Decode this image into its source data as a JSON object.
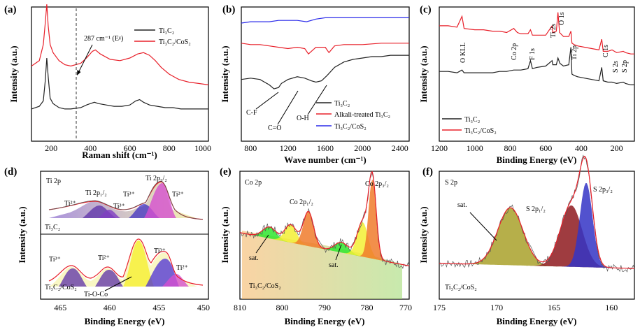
{
  "chart_data": [
    {
      "panel": "(a)",
      "type": "line",
      "xlabel": "Raman shift (cm⁻¹)",
      "ylabel": "Intensity (a.u.)",
      "xlim": [
        100,
        1000
      ],
      "xticks": [
        "200",
        "400",
        "600",
        "800",
        "1000"
      ],
      "annotation": "287 cm⁻¹ (Eᵍ)",
      "marker_x": 287,
      "series": [
        {
          "name": "Ti₃C₂",
          "color": "#222222",
          "x": [
            100,
            140,
            160,
            170,
            178,
            185,
            195,
            210,
            240,
            270,
            300,
            350,
            380,
            400,
            420,
            440,
            480,
            520,
            560,
            600,
            630,
            650,
            670,
            700,
            740,
            780,
            820,
            860,
            900,
            950,
            1000
          ],
          "y": [
            0.24,
            0.26,
            0.3,
            0.45,
            0.62,
            0.48,
            0.32,
            0.28,
            0.25,
            0.24,
            0.24,
            0.25,
            0.27,
            0.28,
            0.29,
            0.28,
            0.27,
            0.26,
            0.26,
            0.27,
            0.3,
            0.31,
            0.29,
            0.27,
            0.26,
            0.25,
            0.25,
            0.24,
            0.24,
            0.24,
            0.24
          ]
        },
        {
          "name": "Ti₃C₂/CoS₂",
          "color": "#e8202a",
          "x": [
            100,
            140,
            160,
            170,
            178,
            185,
            195,
            210,
            240,
            270,
            300,
            350,
            380,
            410,
            425,
            450,
            500,
            550,
            600,
            640,
            670,
            700,
            730,
            760,
            800,
            850,
            900,
            950,
            1000
          ],
          "y": [
            0.56,
            0.6,
            0.72,
            0.88,
            1.02,
            0.86,
            0.72,
            0.66,
            0.6,
            0.57,
            0.56,
            0.58,
            0.62,
            0.67,
            0.68,
            0.65,
            0.61,
            0.6,
            0.62,
            0.65,
            0.66,
            0.64,
            0.6,
            0.55,
            0.5,
            0.46,
            0.44,
            0.43,
            0.42
          ]
        }
      ]
    },
    {
      "panel": "(b)",
      "type": "line",
      "xlabel": "Wave number (cm⁻¹)",
      "ylabel": "Intensity (a.u.)",
      "xlim": [
        700,
        2500
      ],
      "xticks": [
        "800",
        "1200",
        "1600",
        "2000",
        "2400"
      ],
      "annotations": [
        "C-F",
        "C=O",
        "O-H"
      ],
      "series": [
        {
          "name": "Ti₃C₂",
          "color": "#222222",
          "x": [
            700,
            800,
            900,
            1000,
            1050,
            1100,
            1130,
            1200,
            1300,
            1380,
            1450,
            1500,
            1560,
            1620,
            1700,
            1800,
            1900,
            2000,
            2100,
            2200,
            2300,
            2400,
            2500
          ],
          "y": [
            0.46,
            0.47,
            0.46,
            0.42,
            0.39,
            0.4,
            0.43,
            0.46,
            0.48,
            0.47,
            0.45,
            0.44,
            0.45,
            0.49,
            0.55,
            0.59,
            0.61,
            0.62,
            0.63,
            0.63,
            0.64,
            0.64,
            0.64
          ]
        },
        {
          "name": "Alkali-treated Ti₃C₂",
          "color": "#e8202a",
          "x": [
            700,
            800,
            900,
            1000,
            1100,
            1200,
            1300,
            1380,
            1420,
            1500,
            1600,
            1640,
            1700,
            1800,
            2000,
            2200,
            2400,
            2500
          ],
          "y": [
            0.73,
            0.72,
            0.72,
            0.71,
            0.7,
            0.69,
            0.7,
            0.69,
            0.65,
            0.7,
            0.7,
            0.66,
            0.71,
            0.72,
            0.72,
            0.73,
            0.73,
            0.73
          ]
        },
        {
          "name": "Ti₃C₂/CoS₂",
          "color": "#2b2bea",
          "x": [
            700,
            800,
            900,
            1000,
            1100,
            1200,
            1300,
            1400,
            1500,
            1600,
            1700,
            1800,
            1900,
            2000,
            2100,
            2200,
            2300,
            2400,
            2500
          ],
          "y": [
            0.88,
            0.89,
            0.89,
            0.89,
            0.9,
            0.9,
            0.9,
            0.89,
            0.91,
            0.92,
            0.92,
            0.92,
            0.92,
            0.92,
            0.92,
            0.92,
            0.92,
            0.92,
            0.92
          ]
        }
      ]
    },
    {
      "panel": "(c)",
      "type": "line",
      "xlabel": "Binding Energy (eV)",
      "ylabel": "Intensity (a.u.)",
      "xlim": [
        1200,
        100
      ],
      "xticks": [
        "1200",
        "1000",
        "800",
        "600",
        "400",
        "200"
      ],
      "peak_labels": [
        {
          "text": "O KLL",
          "x": 1072
        },
        {
          "text": "Co 2p",
          "x": 780
        },
        {
          "text": "F 1s",
          "x": 686
        },
        {
          "text": "Ti 2s",
          "x": 564
        },
        {
          "text": "O 1s",
          "x": 531
        },
        {
          "text": "Ti 2p",
          "x": 458
        },
        {
          "text": "C 1s",
          "x": 284
        },
        {
          "text": "S 2s",
          "x": 226
        },
        {
          "text": "S 2p",
          "x": 163
        }
      ],
      "series": [
        {
          "name": "Ti₃C₂",
          "color": "#222222",
          "x": [
            1200,
            1150,
            1100,
            1072,
            1060,
            1000,
            950,
            900,
            860,
            820,
            780,
            740,
            700,
            686,
            675,
            650,
            600,
            564,
            560,
            540,
            531,
            520,
            500,
            470,
            458,
            452,
            440,
            420,
            380,
            340,
            300,
            284,
            276,
            250,
            226,
            200,
            163,
            150,
            120,
            100
          ],
          "y": [
            0.52,
            0.52,
            0.51,
            0.53,
            0.51,
            0.51,
            0.51,
            0.51,
            0.52,
            0.52,
            0.53,
            0.53,
            0.54,
            0.6,
            0.54,
            0.55,
            0.56,
            0.6,
            0.57,
            0.57,
            0.62,
            0.58,
            0.56,
            0.57,
            0.7,
            0.5,
            0.49,
            0.48,
            0.47,
            0.46,
            0.45,
            0.55,
            0.45,
            0.44,
            0.44,
            0.43,
            0.44,
            0.43,
            0.42,
            0.42
          ]
        },
        {
          "name": "Ti₃C₂/CoS₂",
          "color": "#e8202a",
          "x": [
            1200,
            1150,
            1100,
            1072,
            1060,
            1000,
            950,
            900,
            860,
            820,
            780,
            760,
            740,
            700,
            686,
            675,
            650,
            600,
            564,
            560,
            540,
            531,
            522,
            500,
            470,
            458,
            452,
            440,
            420,
            380,
            340,
            300,
            284,
            276,
            250,
            226,
            200,
            163,
            150,
            120,
            100
          ],
          "y": [
            0.86,
            0.86,
            0.85,
            0.93,
            0.84,
            0.83,
            0.83,
            0.82,
            0.82,
            0.81,
            0.84,
            0.81,
            0.8,
            0.8,
            0.83,
            0.79,
            0.79,
            0.79,
            0.86,
            0.81,
            0.82,
            0.96,
            0.81,
            0.78,
            0.78,
            0.82,
            0.73,
            0.72,
            0.71,
            0.7,
            0.69,
            0.68,
            0.76,
            0.67,
            0.67,
            0.68,
            0.66,
            0.67,
            0.66,
            0.65,
            0.65
          ]
        }
      ]
    },
    {
      "panel": "(d)",
      "type": "line",
      "title": "Ti 2p",
      "xlabel": "Binding Energy (eV)",
      "ylabel": "Intensity (a.u.)",
      "xlim": [
        467,
        450
      ],
      "xticks": [
        "465",
        "460",
        "455",
        "450"
      ],
      "subpanels": [
        {
          "sample": "Ti₃C₂",
          "peak_labels": [
            "Ti 2p₁/₂",
            "Ti 2p₃/₂",
            "Ti²⁺",
            "Ti³⁺",
            "Ti³⁺",
            "Ti²⁺"
          ]
        },
        {
          "sample": "Ti₃C₂/CoS₂",
          "peak_labels": [
            "Ti³⁺",
            "Ti²⁺",
            "Ti³⁺",
            "Ti²⁺",
            "Ti-O-Co"
          ]
        }
      ]
    },
    {
      "panel": "(e)",
      "type": "line",
      "title": "Co 2p",
      "sample": "Ti₃C₂/CoS₂",
      "xlabel": "Binding Energy (eV)",
      "ylabel": "Intensity (a.u.)",
      "xlim": [
        810,
        770
      ],
      "xticks": [
        "810",
        "800",
        "790",
        "780",
        "770"
      ],
      "peak_labels": [
        "Co 2p₁/₂",
        "Co 2p₃/₂",
        "sat.",
        "sat."
      ],
      "peaks": [
        {
          "center": 803.0,
          "height": 0.09,
          "width": 1.6,
          "color": "#2ee62e"
        },
        {
          "center": 798.0,
          "height": 0.14,
          "width": 1.4,
          "color": "#f3f034"
        },
        {
          "center": 793.8,
          "height": 0.27,
          "width": 1.2,
          "color": "#f07b2b"
        },
        {
          "center": 786.0,
          "height": 0.08,
          "width": 1.6,
          "color": "#2ee62e"
        },
        {
          "center": 781.0,
          "height": 0.27,
          "width": 1.3,
          "color": "#f3f034"
        },
        {
          "center": 778.7,
          "height": 0.62,
          "width": 0.9,
          "color": "#f07b2b"
        }
      ]
    },
    {
      "panel": "(f)",
      "type": "line",
      "title": "S 2p",
      "sample": "Ti₃C₂/CoS₂",
      "xlabel": "Binding Energy (eV)",
      "ylabel": "Intensity (a.u.)",
      "xlim": [
        175,
        158
      ],
      "xticks": [
        "175",
        "170",
        "165",
        "160"
      ],
      "peak_labels": [
        "S 2p₃/₂",
        "S 2p₁/₂",
        "sat."
      ],
      "peaks": [
        {
          "center": 168.8,
          "height": 0.45,
          "width": 1.1,
          "color": "#a9a12a"
        },
        {
          "center": 163.5,
          "height": 0.48,
          "width": 0.95,
          "color": "#8e1a1e"
        },
        {
          "center": 162.2,
          "height": 0.66,
          "width": 0.55,
          "color": "#3434c6"
        }
      ]
    }
  ]
}
